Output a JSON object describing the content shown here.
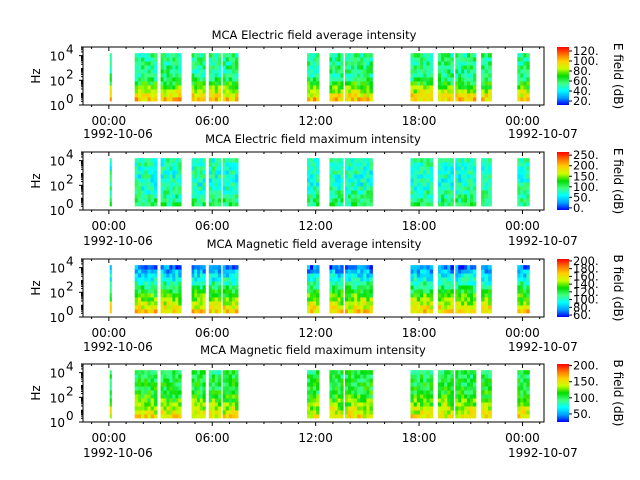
{
  "figure": {
    "background": "#ffffff"
  },
  "x_ticks": [
    "00:00",
    "06:00",
    "12:00",
    "18:00",
    "00:00"
  ],
  "x_tick_hours": [
    0,
    6,
    12,
    18,
    24
  ],
  "x_minor_step_hours": 1,
  "date_labels": {
    "start": "1992-10-06",
    "end": "1992-10-07"
  },
  "y_ticks": [
    "10",
    "10",
    "10"
  ],
  "y_tick_exponents": [
    "0",
    "2",
    "4"
  ],
  "colormap": [
    "#0000ff",
    "#00a0ff",
    "#00ffff",
    "#40ff80",
    "#00dd00",
    "#c8ff00",
    "#ffd000",
    "#ff7000",
    "#ff0000"
  ],
  "chart_data": [
    {
      "type": "heatmap",
      "title": "MCA  Electric field average intensity",
      "ylabel": "Hz",
      "yscale": "log",
      "ylim": [
        1,
        50000
      ],
      "xlabel": "",
      "colorbar": {
        "label": "E field (dB)",
        "ticks": [
          "20.",
          "40.",
          "60.",
          "80.",
          "100.",
          "120."
        ],
        "tick_values": [
          20,
          40,
          60,
          80,
          100,
          120
        ],
        "range": [
          12,
          128
        ]
      },
      "data_intervals_hours": [
        [
          0.05,
          0.15
        ],
        [
          1.5,
          2.8
        ],
        [
          3.0,
          4.2
        ],
        [
          4.8,
          5.6
        ],
        [
          5.8,
          6.5
        ],
        [
          6.6,
          7.5
        ],
        [
          11.5,
          12.2
        ],
        [
          12.8,
          13.6
        ],
        [
          13.7,
          15.3
        ],
        [
          17.5,
          18.8
        ],
        [
          19.1,
          20.0
        ],
        [
          20.1,
          21.3
        ],
        [
          21.6,
          22.2
        ],
        [
          23.7,
          24.4
        ]
      ],
      "approx_dB": {
        "low_freq": 100,
        "mid_freq": 55,
        "high_freq": 55
      }
    },
    {
      "type": "heatmap",
      "title": "MCA  Electric field maximum intensity",
      "ylabel": "Hz",
      "yscale": "log",
      "ylim": [
        1,
        50000
      ],
      "xlabel": "",
      "colorbar": {
        "label": "E field (dB)",
        "ticks": [
          "0.",
          "50.",
          "100.",
          "150.",
          "200.",
          "250."
        ],
        "tick_values": [
          0,
          50,
          100,
          150,
          200,
          250
        ],
        "range": [
          -10,
          265
        ]
      },
      "data_intervals_hours": [
        [
          0.05,
          0.15
        ],
        [
          1.5,
          2.8
        ],
        [
          3.0,
          4.2
        ],
        [
          4.8,
          5.6
        ],
        [
          5.8,
          6.5
        ],
        [
          6.6,
          7.5
        ],
        [
          11.5,
          12.2
        ],
        [
          12.8,
          13.6
        ],
        [
          13.7,
          15.3
        ],
        [
          17.5,
          18.8
        ],
        [
          19.1,
          20.0
        ],
        [
          20.1,
          21.3
        ],
        [
          21.6,
          22.2
        ],
        [
          23.7,
          24.4
        ]
      ],
      "approx_dB": {
        "low_freq": 100,
        "mid_freq": 70,
        "high_freq": 80
      }
    },
    {
      "type": "heatmap",
      "title": "MCA  Magnetic field average intensity",
      "ylabel": "Hz",
      "yscale": "log",
      "ylim": [
        1,
        50000
      ],
      "xlabel": "",
      "colorbar": {
        "label": "B field (dB)",
        "ticks": [
          "60.",
          "80.",
          "100.",
          "120.",
          "140.",
          "160.",
          "180.",
          "200."
        ],
        "tick_values": [
          60,
          80,
          100,
          120,
          140,
          160,
          180,
          200
        ],
        "range": [
          55,
          205
        ]
      },
      "data_intervals_hours": [
        [
          0.05,
          0.15
        ],
        [
          1.5,
          2.8
        ],
        [
          3.0,
          4.2
        ],
        [
          4.8,
          5.6
        ],
        [
          5.8,
          6.5
        ],
        [
          6.6,
          7.5
        ],
        [
          11.5,
          12.2
        ],
        [
          12.8,
          13.6
        ],
        [
          13.7,
          15.3
        ],
        [
          17.5,
          18.8
        ],
        [
          19.1,
          20.0
        ],
        [
          20.1,
          21.3
        ],
        [
          21.6,
          22.2
        ],
        [
          23.7,
          24.4
        ]
      ],
      "approx_dB": {
        "low_freq": 165,
        "mid_freq": 120,
        "high_freq": 70
      }
    },
    {
      "type": "heatmap",
      "title": "MCA  Magnetic field maximum intensity",
      "ylabel": "Hz",
      "yscale": "log",
      "ylim": [
        1,
        50000
      ],
      "xlabel": "",
      "colorbar": {
        "label": "B field (dB)",
        "ticks": [
          "50.",
          "100.",
          "150.",
          "200."
        ],
        "tick_values": [
          50,
          100,
          150,
          200
        ],
        "range": [
          25,
          205
        ]
      },
      "data_intervals_hours": [
        [
          0.05,
          0.15
        ],
        [
          1.5,
          2.8
        ],
        [
          3.0,
          4.2
        ],
        [
          4.8,
          5.6
        ],
        [
          5.8,
          6.5
        ],
        [
          6.6,
          7.5
        ],
        [
          11.5,
          12.2
        ],
        [
          12.8,
          13.6
        ],
        [
          13.7,
          15.3
        ],
        [
          17.5,
          18.8
        ],
        [
          19.1,
          20.0
        ],
        [
          20.1,
          21.3
        ],
        [
          21.6,
          22.2
        ],
        [
          23.7,
          24.4
        ]
      ],
      "approx_dB": {
        "low_freq": 150,
        "mid_freq": 110,
        "high_freq": 100
      }
    }
  ]
}
